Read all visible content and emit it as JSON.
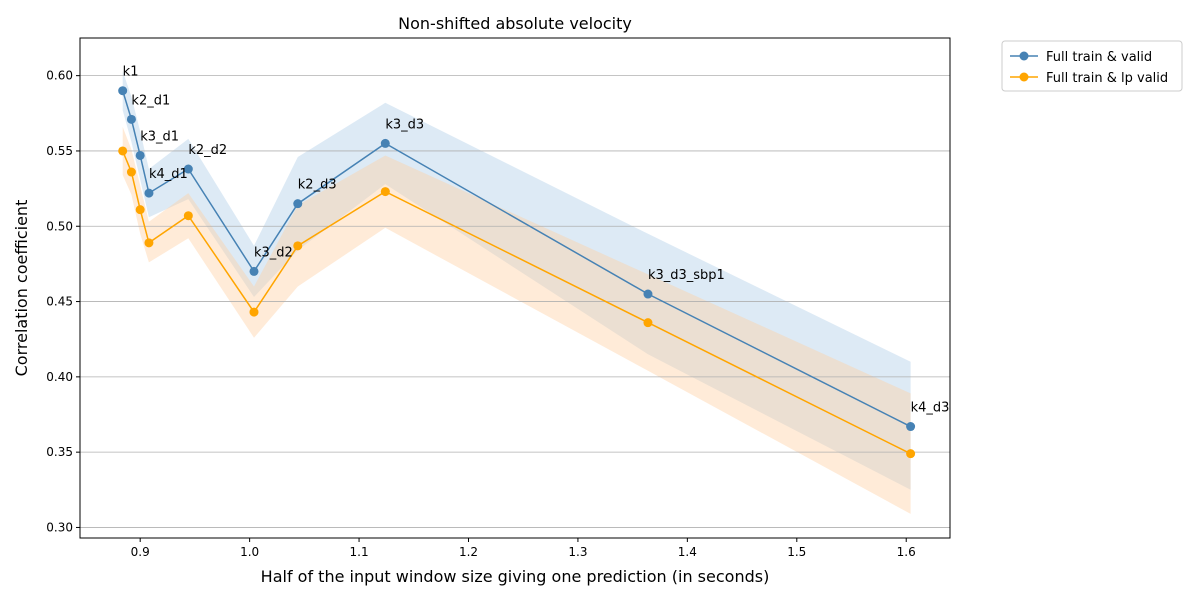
{
  "chart_data": {
    "type": "line",
    "title": "Non-shifted absolute velocity",
    "xlabel": "Half of the input window size giving one prediction (in seconds)",
    "ylabel": "Correlation coefficient",
    "xlim": [
      0.845,
      1.64
    ],
    "ylim": [
      0.293,
      0.625
    ],
    "xticks": [
      0.9,
      1.0,
      1.1,
      1.2,
      1.3,
      1.4,
      1.5,
      1.6
    ],
    "xtick_labels": [
      "0.9",
      "1.0",
      "1.1",
      "1.2",
      "1.3",
      "1.4",
      "1.5",
      "1.6"
    ],
    "yticks": [
      0.3,
      0.35,
      0.4,
      0.45,
      0.5,
      0.55,
      0.6
    ],
    "ytick_labels": [
      "0.30",
      "0.35",
      "0.40",
      "0.45",
      "0.50",
      "0.55",
      "0.60"
    ],
    "grid": "horizontal",
    "legend_position": "outside-top-right",
    "x": [
      0.884,
      0.892,
      0.9,
      0.908,
      0.944,
      1.004,
      1.044,
      1.124,
      1.364,
      1.604
    ],
    "point_labels": [
      "k1",
      "k2_d1",
      "k3_d1",
      "k4_d1",
      "k2_d2",
      "k3_d2",
      "k2_d3",
      "k3_d3",
      "k3_d3_sbp1",
      "k4_d3"
    ],
    "series": [
      {
        "name": "Full train & valid",
        "color": "#4682b4",
        "band_color": "#aecde8",
        "values": [
          0.59,
          0.571,
          0.547,
          0.522,
          0.538,
          0.47,
          0.515,
          0.555,
          0.455,
          0.367
        ],
        "upper": [
          0.603,
          0.586,
          0.563,
          0.538,
          0.558,
          0.487,
          0.546,
          0.582,
          0.495,
          0.41
        ],
        "lower": [
          0.577,
          0.556,
          0.531,
          0.506,
          0.518,
          0.453,
          0.484,
          0.528,
          0.415,
          0.325
        ]
      },
      {
        "name": "Full train & lp valid",
        "color": "#ffa500",
        "band_color": "#ffcfa3",
        "values": [
          0.55,
          0.536,
          0.511,
          0.489,
          0.507,
          0.443,
          0.487,
          0.523,
          0.436,
          0.349
        ],
        "upper": [
          0.566,
          0.551,
          0.527,
          0.503,
          0.522,
          0.46,
          0.514,
          0.547,
          0.468,
          0.389
        ],
        "lower": [
          0.534,
          0.521,
          0.495,
          0.476,
          0.492,
          0.426,
          0.46,
          0.499,
          0.404,
          0.309
        ]
      }
    ]
  }
}
